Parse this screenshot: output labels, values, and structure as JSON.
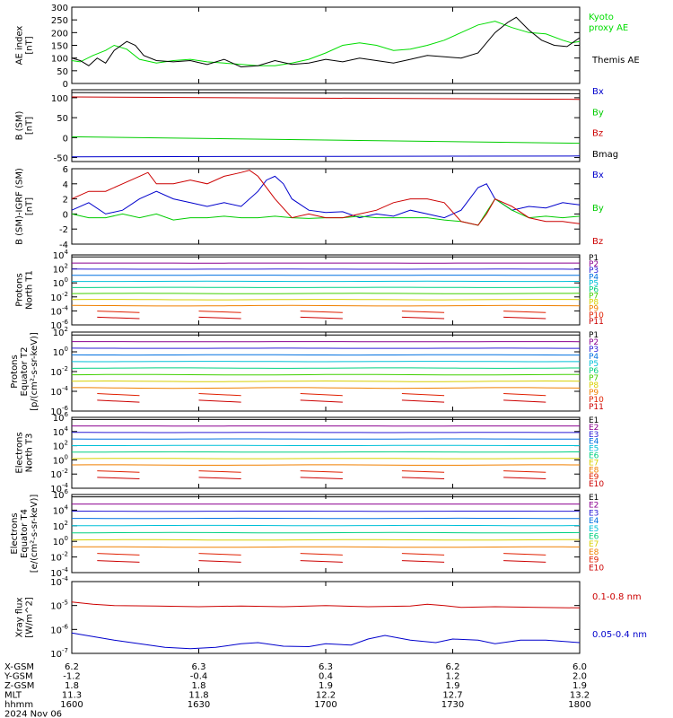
{
  "chart_data": [
    {
      "type": "line",
      "ylabel": "AE index [nT]",
      "ylim": [
        0,
        300
      ],
      "yticks": [
        "0",
        "50",
        "100",
        "150",
        "200",
        "250",
        "300"
      ],
      "legend": [
        "Kyoto proxy AE",
        "Themis AE"
      ],
      "series": [
        {
          "name": "Kyoto proxy AE",
          "color": "#00dd00",
          "x": [
            0,
            2,
            5,
            8,
            10,
            13,
            16,
            20,
            24,
            28,
            32,
            36,
            40,
            44,
            48,
            52,
            56,
            60,
            64,
            68,
            72,
            76,
            80,
            84,
            88,
            92,
            96,
            100,
            104,
            108,
            112,
            116,
            118,
            120
          ],
          "values": [
            90,
            85,
            110,
            130,
            150,
            135,
            95,
            80,
            90,
            95,
            85,
            80,
            75,
            70,
            70,
            80,
            95,
            120,
            150,
            160,
            150,
            130,
            135,
            150,
            170,
            200,
            230,
            245,
            220,
            200,
            195,
            170,
            160,
            165
          ]
        },
        {
          "name": "Themis AE",
          "color": "#000000",
          "x": [
            0,
            2,
            4,
            6,
            8,
            10,
            13,
            15,
            17,
            20,
            24,
            28,
            32,
            36,
            40,
            44,
            48,
            52,
            56,
            60,
            64,
            68,
            72,
            76,
            80,
            84,
            88,
            92,
            96,
            100,
            103,
            105,
            108,
            111,
            114,
            117,
            120
          ],
          "values": [
            100,
            90,
            70,
            100,
            80,
            130,
            165,
            150,
            110,
            90,
            85,
            90,
            75,
            95,
            65,
            70,
            90,
            75,
            80,
            95,
            85,
            100,
            90,
            80,
            95,
            110,
            105,
            100,
            120,
            200,
            240,
            260,
            210,
            170,
            150,
            145,
            180
          ]
        }
      ]
    },
    {
      "type": "line",
      "ylabel": "B (SM) [nT]",
      "ylim": [
        -60,
        120
      ],
      "yticks": [
        "-50",
        "0",
        "50",
        "100"
      ],
      "legend": [
        "Bx",
        "By",
        "Bz",
        "Bmag"
      ],
      "series": [
        {
          "name": "Bx",
          "color": "#0000cc",
          "x": [
            0,
            120
          ],
          "values": [
            -48,
            -46
          ]
        },
        {
          "name": "By",
          "color": "#00cc00",
          "x": [
            0,
            120
          ],
          "values": [
            2,
            -14
          ]
        },
        {
          "name": "Bz",
          "color": "#cc0000",
          "x": [
            0,
            120
          ],
          "values": [
            102,
            96
          ]
        },
        {
          "name": "Bmag",
          "color": "#000000",
          "x": [
            0,
            120
          ],
          "values": [
            113,
            110
          ]
        }
      ]
    },
    {
      "type": "line",
      "ylabel": "B (SM)-IGRF (SM) [nT]",
      "ylim": [
        -4,
        6
      ],
      "yticks": [
        "-4",
        "-2",
        "0",
        "2",
        "4",
        "6"
      ],
      "legend": [
        "Bx",
        "By",
        "Bz"
      ],
      "series": [
        {
          "name": "Bx",
          "color": "#0000cc",
          "x": [
            0,
            4,
            8,
            12,
            16,
            20,
            24,
            28,
            32,
            36,
            40,
            44,
            46,
            48,
            50,
            52,
            56,
            60,
            64,
            68,
            72,
            76,
            80,
            84,
            88,
            92,
            94,
            96,
            98,
            100,
            104,
            108,
            112,
            116,
            120
          ],
          "values": [
            0.5,
            1.5,
            0,
            0.5,
            2,
            3,
            2,
            1.5,
            1,
            1.5,
            1,
            3,
            4.5,
            5,
            4,
            2,
            0.5,
            0.2,
            0.3,
            -0.5,
            0,
            -0.3,
            0.5,
            0,
            -0.5,
            0.5,
            2,
            3.5,
            4,
            2,
            0.5,
            1,
            0.8,
            1.5,
            1.2
          ]
        },
        {
          "name": "By",
          "color": "#00cc00",
          "x": [
            0,
            4,
            8,
            12,
            16,
            20,
            24,
            28,
            32,
            36,
            40,
            44,
            48,
            52,
            56,
            60,
            64,
            68,
            72,
            76,
            80,
            84,
            88,
            92,
            96,
            100,
            104,
            108,
            112,
            116,
            120
          ],
          "values": [
            0,
            -0.5,
            -0.5,
            0,
            -0.5,
            0,
            -0.8,
            -0.5,
            -0.5,
            -0.3,
            -0.5,
            -0.5,
            -0.3,
            -0.5,
            -0.6,
            -0.5,
            -0.5,
            -0.3,
            -0.5,
            -0.5,
            -0.5,
            -0.5,
            -0.8,
            -1,
            -1.5,
            2,
            0.5,
            -0.5,
            -0.3,
            -0.5,
            -0.3
          ]
        },
        {
          "name": "Bz",
          "color": "#cc0000",
          "x": [
            0,
            4,
            8,
            12,
            16,
            18,
            20,
            24,
            28,
            32,
            36,
            40,
            42,
            44,
            48,
            52,
            56,
            60,
            64,
            68,
            72,
            76,
            80,
            84,
            88,
            92,
            96,
            98,
            100,
            104,
            108,
            112,
            116,
            120
          ],
          "values": [
            2,
            3,
            3,
            4,
            5,
            5.5,
            4,
            4,
            4.5,
            4,
            5,
            5.5,
            5.8,
            5,
            2,
            -0.5,
            0,
            -0.5,
            -0.5,
            0,
            0.5,
            1.5,
            2,
            2,
            1.5,
            -1,
            -1.5,
            0,
            2,
            1,
            -0.5,
            -1,
            -1,
            -1.3
          ]
        }
      ]
    },
    {
      "type": "line",
      "ylabel": "Protons North T1",
      "log_scale": true,
      "ylim": [
        -6,
        4
      ],
      "yticks": [
        "10^-6",
        "10^-4",
        "10^-2",
        "10^0",
        "10^2",
        "10^4"
      ],
      "legend": [
        "P1",
        "P2",
        "P3",
        "P4",
        "P5",
        "P6",
        "P7",
        "P8",
        "P9",
        "P10",
        "P11"
      ]
    },
    {
      "type": "line",
      "ylabel": "Protons Equator T2 [p/(cm^2-s-sr-keV)]",
      "log_scale": true,
      "ylim": [
        -6,
        2
      ],
      "yticks": [
        "10^-6",
        "10^-4",
        "10^-2",
        "10^0",
        "10^2"
      ],
      "legend": [
        "P1",
        "P2",
        "P3",
        "P4",
        "P5",
        "P6",
        "P7",
        "P8",
        "P9",
        "P10",
        "P11"
      ]
    },
    {
      "type": "line",
      "ylabel": "Electrons North T3",
      "log_scale": true,
      "ylim": [
        -4,
        6
      ],
      "yticks": [
        "10^-4",
        "10^-2",
        "10^0",
        "10^2",
        "10^4",
        "10^6"
      ],
      "legend": [
        "E1",
        "E2",
        "E3",
        "E4",
        "E5",
        "E6",
        "E7",
        "E8",
        "E9",
        "E10"
      ]
    },
    {
      "type": "line",
      "ylabel": "Electrons Equator T4 [e/(cm^2-s-sr-keV)]",
      "log_scale": true,
      "ylim": [
        -4,
        6
      ],
      "yticks": [
        "10^-4",
        "10^-2",
        "10^0",
        "10^2",
        "10^4",
        "10^6"
      ],
      "legend": [
        "E1",
        "E2",
        "E3",
        "E4",
        "E5",
        "E6",
        "E7",
        "E8",
        "E9",
        "E10"
      ]
    },
    {
      "type": "line",
      "ylabel": "Xray flux [W/m^2]",
      "log_scale": true,
      "ylim": [
        -7,
        -4
      ],
      "yticks": [
        "10^-7",
        "10^-6",
        "10^-5",
        "10^-4"
      ],
      "legend": [
        "0.1-0.8 nm",
        "0.05-0.4 nm"
      ],
      "series": [
        {
          "name": "0.1-0.8 nm",
          "color": "#cc0000",
          "x": [
            0,
            5,
            10,
            20,
            30,
            40,
            50,
            60,
            70,
            80,
            84,
            88,
            92,
            100,
            110,
            120
          ],
          "values": [
            -4.85,
            -4.95,
            -5.0,
            -5.02,
            -5.05,
            -5.02,
            -5.05,
            -5.0,
            -5.05,
            -5.02,
            -4.95,
            -5.0,
            -5.08,
            -5.05,
            -5.08,
            -5.1
          ]
        },
        {
          "name": "0.05-0.4 nm",
          "color": "#0000cc",
          "x": [
            0,
            5,
            10,
            16,
            22,
            28,
            34,
            40,
            44,
            50,
            56,
            60,
            66,
            70,
            74,
            80,
            86,
            90,
            96,
            100,
            106,
            112,
            120
          ],
          "values": [
            -6.15,
            -6.3,
            -6.45,
            -6.6,
            -6.75,
            -6.8,
            -6.75,
            -6.6,
            -6.55,
            -6.7,
            -6.72,
            -6.6,
            -6.65,
            -6.4,
            -6.25,
            -6.45,
            -6.55,
            -6.4,
            -6.45,
            -6.6,
            -6.45,
            -6.45,
            -6.55
          ]
        }
      ]
    }
  ],
  "proton_colors": [
    "#000000",
    "#8b0090",
    "#2a1bd6",
    "#0070e0",
    "#00c0d8",
    "#00d080",
    "#40d000",
    "#d8d000",
    "#f08000",
    "#e02000",
    "#cc0000"
  ],
  "electron_colors": [
    "#000000",
    "#8b0090",
    "#2a1bd6",
    "#0070e0",
    "#00c0d8",
    "#00d080",
    "#d8d000",
    "#f08000",
    "#e02000",
    "#cc0000"
  ],
  "xaxis": {
    "row_labels": [
      "X-GSM",
      "Y-GSM",
      "Z-GSM",
      "MLT",
      "hhmm"
    ],
    "date_label": "2024 Nov 06",
    "tick_minutes": [
      0,
      30,
      60,
      90,
      120
    ],
    "columns": [
      [
        "6.2",
        "-1.2",
        "1.8",
        "11.3",
        "1600"
      ],
      [
        "6.3",
        "-0.4",
        "1.8",
        "11.8",
        "1630"
      ],
      [
        "6.3",
        "0.4",
        "1.9",
        "12.2",
        "1700"
      ],
      [
        "6.2",
        "1.2",
        "1.9",
        "12.7",
        "1730"
      ],
      [
        "6.0",
        "2.0",
        "1.9",
        "13.2",
        "1800"
      ]
    ]
  }
}
